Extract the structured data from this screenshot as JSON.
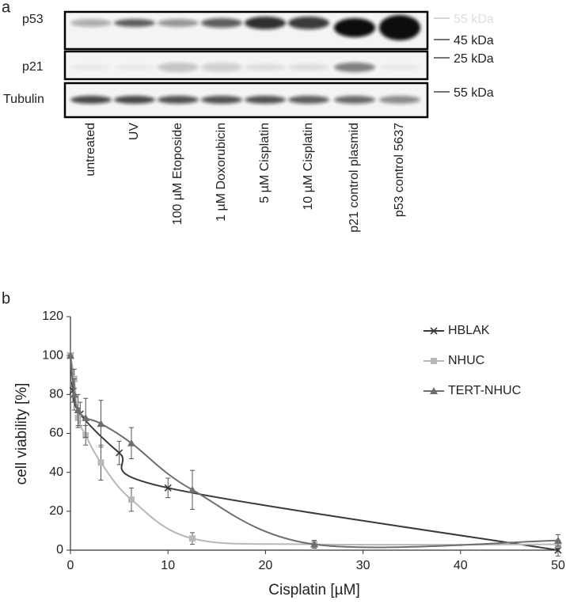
{
  "panel_a": {
    "label": "a",
    "rows": [
      "p53",
      "p21",
      "Tubulin"
    ],
    "markers": [
      "55 kDa",
      "45 kDa",
      "25 kDa",
      "55 kDa"
    ],
    "lanes": [
      "untreated",
      "UV",
      "100 µM Etoposide",
      "1 µM Doxorubicin",
      "5 µM Cisplatin",
      "10 µM Cisplatin",
      "p21 control plasmid",
      "p53 control 5637"
    ]
  },
  "chart_data": {
    "type": "line",
    "panel_label": "b",
    "x_label": "Cisplatin [µM]",
    "y_label": "cell viability [%]",
    "xlim": [
      0,
      50
    ],
    "xticks": [
      0,
      10,
      20,
      30,
      40,
      50
    ],
    "ylim": [
      0,
      120
    ],
    "yticks": [
      0,
      20,
      40,
      60,
      80,
      100,
      120
    ],
    "grid": false,
    "legend": "upper right",
    "series": [
      {
        "name": "HBLAK",
        "color": "#3a3a3a",
        "marker": "x",
        "x": [
          0,
          0.25,
          1,
          5,
          10,
          50
        ],
        "values": [
          100,
          82,
          70,
          50,
          32,
          0
        ],
        "errors": [
          0,
          6,
          6,
          6,
          5,
          3
        ]
      },
      {
        "name": "NHUC",
        "color": "#b8b8b8",
        "marker": "square",
        "x": [
          0,
          0.39,
          0.78,
          1.56,
          3.125,
          6.25,
          12.5,
          25,
          50
        ],
        "values": [
          100,
          88,
          68,
          59,
          45,
          26,
          6,
          3,
          3
        ],
        "errors": [
          0,
          5,
          5,
          5,
          9,
          6,
          3,
          2,
          2
        ]
      },
      {
        "name": "TERT-NHUC",
        "color": "#6e6e6e",
        "marker": "triangle",
        "x": [
          0,
          0.39,
          0.78,
          1.56,
          3.125,
          6.25,
          12.5,
          25,
          50
        ],
        "values": [
          100,
          80,
          72,
          68,
          65,
          55,
          31,
          3,
          5
        ],
        "errors": [
          0,
          8,
          8,
          10,
          12,
          8,
          10,
          2,
          3
        ]
      }
    ]
  }
}
